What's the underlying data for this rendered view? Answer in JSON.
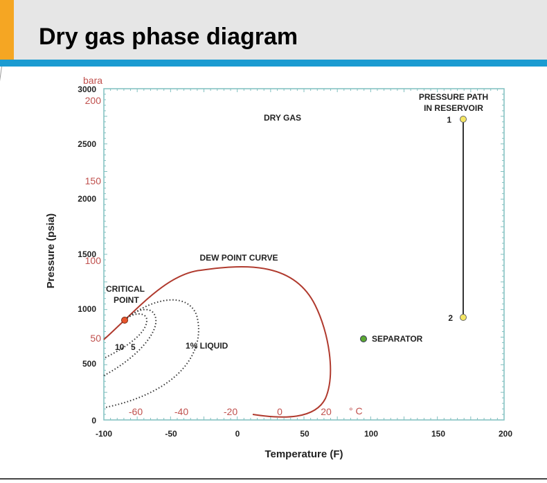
{
  "header": {
    "title": "Dry gas phase diagram"
  },
  "diagram": {
    "xlabel": "Temperature (F)",
    "ylabel": "Pressure (psia)",
    "x_ticks_f": [
      "-100",
      "-50",
      "0",
      "50",
      "100",
      "150",
      "200"
    ],
    "y_ticks_psia": [
      "0",
      "500",
      "1000",
      "1500",
      "2000",
      "2500",
      "3000"
    ],
    "bara_unit": "bara",
    "bara_ticks": [
      "200",
      "150",
      "100",
      "50"
    ],
    "celsius_ticks": [
      "-60",
      "-40",
      "-20",
      "0",
      "20"
    ],
    "celsius_unit": "° C",
    "labels": {
      "dry_gas": "DRY GAS",
      "pressure_path_1": "PRESSURE PATH",
      "pressure_path_2": "IN RESERVOIR",
      "point_1": "1",
      "point_2": "2",
      "dew_point_curve": "DEW POINT CURVE",
      "critical_1": "CRITICAL",
      "critical_2": "POINT",
      "q10": "10",
      "q5": "5",
      "liquid": "1% LIQUID",
      "separator": "SEPARATOR"
    },
    "colors": {
      "axis_frame": "#7fbfbf",
      "curve": "#b03a2e",
      "reservoir_point": "#f5e663",
      "separator_point": "#5ca832",
      "critical_point": "#e8552e",
      "secondary_axis": "#c0504d"
    }
  }
}
